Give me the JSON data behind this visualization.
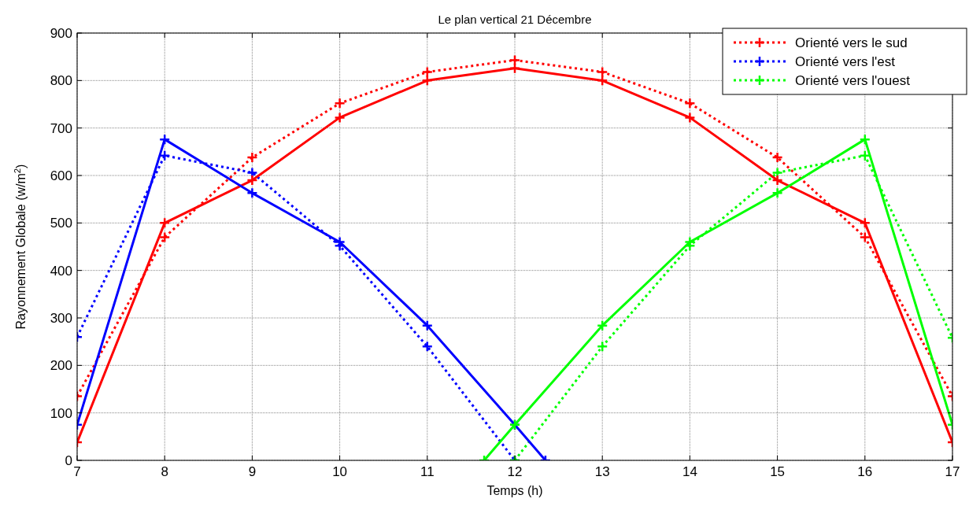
{
  "chart_data": {
    "type": "line",
    "title": "Le plan vertical 21 Décembre",
    "xlabel": "Temps (h)",
    "ylabel": "Rayonnement Globale (w/m$^{2}$)",
    "xlim": [
      7,
      17
    ],
    "xticks": [
      7,
      8,
      9,
      10,
      11,
      12,
      13,
      14,
      15,
      16,
      17
    ],
    "ylim": [
      0,
      900
    ],
    "yticks": [
      0,
      100,
      200,
      300,
      400,
      500,
      600,
      700,
      800,
      900
    ],
    "grid": true,
    "legend": "top right",
    "marker": "cross",
    "series": [
      {
        "name": "Orienté vers le sud",
        "color": "#ff0000",
        "line_style": "dotted",
        "x": [
          7,
          8,
          9,
          10,
          11,
          12,
          13,
          14,
          15,
          16,
          17
        ],
        "values": [
          135,
          470,
          638,
          752,
          818,
          843,
          818,
          752,
          638,
          470,
          135
        ]
      },
      {
        "name": "Orienté vers l'est",
        "color": "#0000ff",
        "line_style": "dotted",
        "x": [
          7,
          8,
          9,
          10,
          11,
          12
        ],
        "values": [
          260,
          642,
          606,
          452,
          240,
          0
        ]
      },
      {
        "name": "Orienté vers l'ouest",
        "color": "#00ff00",
        "line_style": "dotted",
        "x": [
          12,
          13,
          14,
          15,
          16,
          17
        ],
        "values": [
          0,
          240,
          452,
          606,
          642,
          258
        ]
      },
      {
        "color": "#ff0000",
        "line_style": "solid",
        "x": [
          7,
          8,
          9,
          10,
          11,
          12,
          13,
          14,
          15,
          16,
          17
        ],
        "values": [
          38,
          500,
          590,
          722,
          800,
          826,
          800,
          722,
          590,
          500,
          38
        ]
      },
      {
        "color": "#0000ff",
        "line_style": "solid",
        "x": [
          7,
          8,
          9,
          10,
          11,
          12,
          12.35
        ],
        "values": [
          75,
          676,
          563,
          460,
          284,
          75,
          0
        ]
      },
      {
        "color": "#00ff00",
        "line_style": "solid",
        "x": [
          11.65,
          12,
          13,
          14,
          15,
          16,
          17
        ],
        "values": [
          0,
          75,
          284,
          460,
          563,
          676,
          75
        ]
      }
    ]
  }
}
